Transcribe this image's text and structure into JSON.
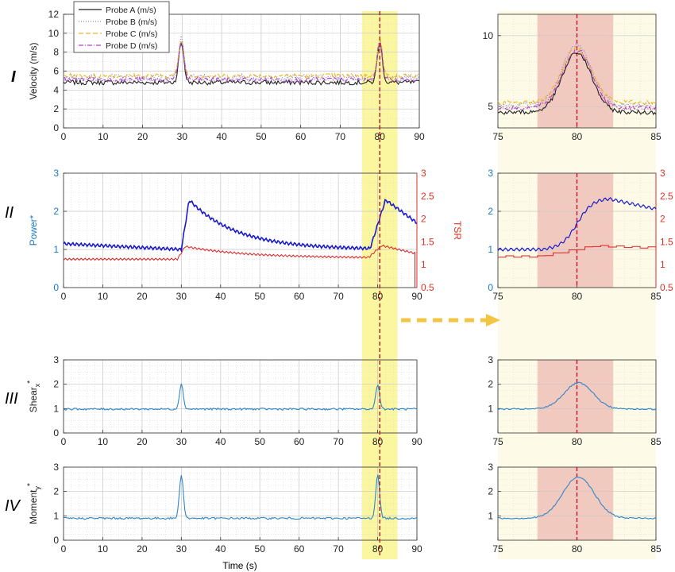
{
  "figure": {
    "row_labels": [
      "I",
      "II",
      "III",
      "IV"
    ],
    "xlabel": "Time (s)",
    "arrow_color": "#f4c542",
    "highlight_color": "#fbf7a0",
    "zoom_band_color": "#f2c9bf",
    "marker_line_color": "#c0142a"
  },
  "chart_data": [
    {
      "id": "I-main",
      "type": "line",
      "title": "",
      "xlabel": "",
      "ylabel": "Velocity (m/s)",
      "xlim": [
        0,
        90
      ],
      "ylim": [
        0,
        12
      ],
      "xticks": [
        0,
        10,
        20,
        30,
        40,
        50,
        60,
        70,
        80,
        90
      ],
      "yticks": [
        0,
        2,
        4,
        6,
        8,
        10,
        12
      ],
      "grid": true,
      "legend": "top-left",
      "series": [
        {
          "name": "Probe A (m/s)",
          "color": "#222222",
          "dash": "",
          "baseline": 4.8,
          "noise": 0.25,
          "peak": 9.0
        },
        {
          "name": "Probe B (m/s)",
          "color": "#8080e0",
          "dash": "1,2",
          "baseline": 5.3,
          "noise": 0.35,
          "peak": 9.5
        },
        {
          "name": "Probe C (m/s)",
          "color": "#e8b820",
          "dash": "6,3",
          "baseline": 5.5,
          "noise": 0.25,
          "peak": 9.3
        },
        {
          "name": "Probe D (m/s)",
          "color": "#b040c0",
          "dash": "6,2,1,2",
          "baseline": 5.1,
          "noise": 0.25,
          "peak": 9.2
        }
      ],
      "events": [
        30,
        80
      ]
    },
    {
      "id": "II-main",
      "type": "line",
      "ylabel": "Power*",
      "ylabel_right": "TSR",
      "xlim": [
        0,
        90
      ],
      "ylim": [
        0,
        3
      ],
      "ylim_right": [
        0.5,
        3
      ],
      "xticks": [
        0,
        10,
        20,
        30,
        40,
        50,
        60,
        70,
        80,
        90
      ],
      "yticks": [
        0,
        1,
        2,
        3
      ],
      "yticks_right": [
        0.5,
        1,
        1.5,
        2,
        2.5,
        3
      ],
      "left_axis_color": "#1a78c2",
      "right_axis_color": "#e03020",
      "series": [
        {
          "name": "Power*",
          "color": "#1a1acc",
          "axis": "left",
          "baseline": 1.05,
          "peak": 2.3
        },
        {
          "name": "TSR",
          "color": "#e02020",
          "axis": "right",
          "baseline": 1.15,
          "peak": 1.4
        }
      ]
    },
    {
      "id": "III-main",
      "type": "line",
      "ylabel": "Shear",
      "ylabel_sub": "x",
      "ylabel_sup": "*",
      "xlim": [
        0,
        90
      ],
      "ylim": [
        0,
        3
      ],
      "xticks": [
        0,
        10,
        20,
        30,
        40,
        50,
        60,
        70,
        80,
        90
      ],
      "yticks": [
        0,
        1,
        2,
        3
      ],
      "series": [
        {
          "name": "",
          "color": "#2f86c8",
          "baseline": 0.98,
          "peak": 2.0
        }
      ]
    },
    {
      "id": "IV-main",
      "type": "line",
      "ylabel": "Moment",
      "ylabel_sub": "y",
      "ylabel_sup": "*",
      "xlim": [
        0,
        90
      ],
      "ylim": [
        0,
        3
      ],
      "xticks": [
        0,
        10,
        20,
        30,
        40,
        50,
        60,
        70,
        80,
        90
      ],
      "yticks": [
        0,
        1,
        2,
        3
      ],
      "series": [
        {
          "name": "",
          "color": "#2f86c8",
          "baseline": 0.9,
          "peak": 2.7
        }
      ]
    },
    {
      "id": "I-zoom",
      "type": "line",
      "xlim": [
        75,
        85
      ],
      "ylim": [
        3.5,
        11.5
      ],
      "xticks": [
        75,
        80,
        85
      ],
      "yticks": [
        5,
        10
      ],
      "zoom_band": [
        77.5,
        82.3
      ],
      "marker_x": 80
    },
    {
      "id": "II-zoom",
      "type": "line",
      "xlim": [
        75,
        85
      ],
      "ylim": [
        0,
        3
      ],
      "ylim_right": [
        0.5,
        3
      ],
      "xticks": [
        75,
        80,
        85
      ],
      "yticks": [
        0,
        1,
        2,
        3
      ],
      "yticks_right": [
        0.5,
        1,
        1.5,
        2,
        2.5,
        3
      ],
      "zoom_band": [
        77.5,
        82.3
      ],
      "marker_x": 80
    },
    {
      "id": "III-zoom",
      "type": "line",
      "xlim": [
        75,
        85
      ],
      "ylim": [
        0,
        3
      ],
      "xticks": [
        75,
        80,
        85
      ],
      "yticks": [
        1,
        2,
        3
      ],
      "zoom_band": [
        77.5,
        82.3
      ],
      "marker_x": 80
    },
    {
      "id": "IV-zoom",
      "type": "line",
      "xlim": [
        75,
        85
      ],
      "ylim": [
        0,
        3
      ],
      "xticks": [
        75,
        80,
        85
      ],
      "yticks": [
        1,
        2,
        3
      ],
      "zoom_band": [
        77.5,
        82.3
      ],
      "marker_x": 80
    }
  ],
  "highlight_window": [
    75.5,
    84.5
  ],
  "marker_time": 80
}
